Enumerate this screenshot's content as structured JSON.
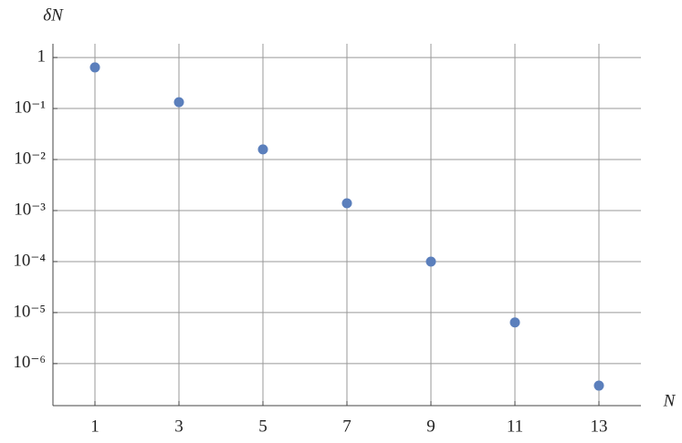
{
  "chart_data": {
    "type": "scatter",
    "x_label": "N",
    "y_label": "δN",
    "x": [
      1,
      3,
      5,
      7,
      9,
      11,
      13
    ],
    "series": [
      {
        "color": "#5b7fbc",
        "values": [
          0.64,
          0.133,
          0.0158,
          0.00139,
          0.0001,
          6.4e-06,
          3.7e-07
        ]
      }
    ],
    "xlim": [
      0,
      14
    ],
    "xticks": [
      1,
      3,
      5,
      7,
      9,
      11,
      13
    ],
    "ylim": [
      1.5e-07,
      1.86
    ],
    "log_y": true,
    "yticks": [
      1,
      {
        "value": 0.1,
        "label": "10⁻¹"
      },
      {
        "value": 0.01,
        "label": "10⁻²"
      },
      {
        "value": 0.001,
        "label": "10⁻³"
      },
      {
        "value": 0.0001,
        "label": "10⁻⁴"
      },
      {
        "value": 1e-05,
        "label": "10⁻⁵"
      },
      {
        "value": 1e-06,
        "label": "10⁻⁶"
      }
    ],
    "grid": true
  }
}
